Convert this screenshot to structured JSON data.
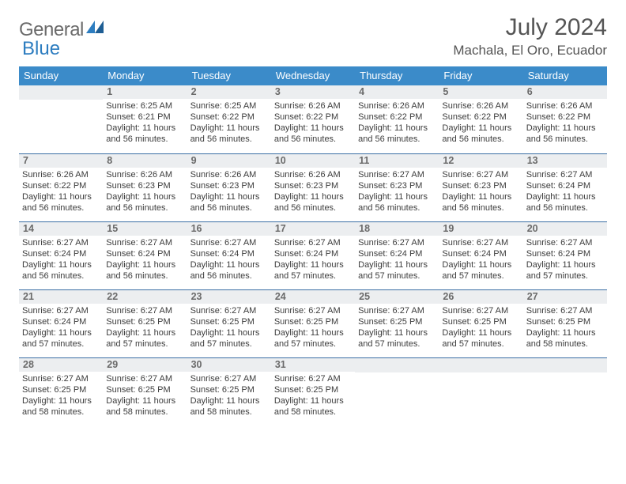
{
  "brand": {
    "text1": "General",
    "text2": "Blue",
    "text_color_gray": "#6b6b6b",
    "text_color_blue": "#2d7dc0",
    "shape_color": "#2d7dc0"
  },
  "title": {
    "month": "July 2024",
    "location": "Machala, El Oro, Ecuador",
    "month_fontsize": 30,
    "location_fontsize": 17,
    "color": "#555555"
  },
  "colors": {
    "header_bg": "#3b8bc9",
    "header_text": "#ffffff",
    "daynum_bg": "#eceef0",
    "daynum_text": "#6a6a6a",
    "body_text": "#3c3c3c",
    "row_border": "#3b6fa5",
    "page_bg": "#ffffff"
  },
  "headers": [
    "Sunday",
    "Monday",
    "Tuesday",
    "Wednesday",
    "Thursday",
    "Friday",
    "Saturday"
  ],
  "weeks": [
    [
      null,
      {
        "n": "1",
        "sunrise": "6:25 AM",
        "sunset": "6:21 PM",
        "daylight": "11 hours and 56 minutes."
      },
      {
        "n": "2",
        "sunrise": "6:25 AM",
        "sunset": "6:22 PM",
        "daylight": "11 hours and 56 minutes."
      },
      {
        "n": "3",
        "sunrise": "6:26 AM",
        "sunset": "6:22 PM",
        "daylight": "11 hours and 56 minutes."
      },
      {
        "n": "4",
        "sunrise": "6:26 AM",
        "sunset": "6:22 PM",
        "daylight": "11 hours and 56 minutes."
      },
      {
        "n": "5",
        "sunrise": "6:26 AM",
        "sunset": "6:22 PM",
        "daylight": "11 hours and 56 minutes."
      },
      {
        "n": "6",
        "sunrise": "6:26 AM",
        "sunset": "6:22 PM",
        "daylight": "11 hours and 56 minutes."
      }
    ],
    [
      {
        "n": "7",
        "sunrise": "6:26 AM",
        "sunset": "6:22 PM",
        "daylight": "11 hours and 56 minutes."
      },
      {
        "n": "8",
        "sunrise": "6:26 AM",
        "sunset": "6:23 PM",
        "daylight": "11 hours and 56 minutes."
      },
      {
        "n": "9",
        "sunrise": "6:26 AM",
        "sunset": "6:23 PM",
        "daylight": "11 hours and 56 minutes."
      },
      {
        "n": "10",
        "sunrise": "6:26 AM",
        "sunset": "6:23 PM",
        "daylight": "11 hours and 56 minutes."
      },
      {
        "n": "11",
        "sunrise": "6:27 AM",
        "sunset": "6:23 PM",
        "daylight": "11 hours and 56 minutes."
      },
      {
        "n": "12",
        "sunrise": "6:27 AM",
        "sunset": "6:23 PM",
        "daylight": "11 hours and 56 minutes."
      },
      {
        "n": "13",
        "sunrise": "6:27 AM",
        "sunset": "6:24 PM",
        "daylight": "11 hours and 56 minutes."
      }
    ],
    [
      {
        "n": "14",
        "sunrise": "6:27 AM",
        "sunset": "6:24 PM",
        "daylight": "11 hours and 56 minutes."
      },
      {
        "n": "15",
        "sunrise": "6:27 AM",
        "sunset": "6:24 PM",
        "daylight": "11 hours and 56 minutes."
      },
      {
        "n": "16",
        "sunrise": "6:27 AM",
        "sunset": "6:24 PM",
        "daylight": "11 hours and 56 minutes."
      },
      {
        "n": "17",
        "sunrise": "6:27 AM",
        "sunset": "6:24 PM",
        "daylight": "11 hours and 57 minutes."
      },
      {
        "n": "18",
        "sunrise": "6:27 AM",
        "sunset": "6:24 PM",
        "daylight": "11 hours and 57 minutes."
      },
      {
        "n": "19",
        "sunrise": "6:27 AM",
        "sunset": "6:24 PM",
        "daylight": "11 hours and 57 minutes."
      },
      {
        "n": "20",
        "sunrise": "6:27 AM",
        "sunset": "6:24 PM",
        "daylight": "11 hours and 57 minutes."
      }
    ],
    [
      {
        "n": "21",
        "sunrise": "6:27 AM",
        "sunset": "6:24 PM",
        "daylight": "11 hours and 57 minutes."
      },
      {
        "n": "22",
        "sunrise": "6:27 AM",
        "sunset": "6:25 PM",
        "daylight": "11 hours and 57 minutes."
      },
      {
        "n": "23",
        "sunrise": "6:27 AM",
        "sunset": "6:25 PM",
        "daylight": "11 hours and 57 minutes."
      },
      {
        "n": "24",
        "sunrise": "6:27 AM",
        "sunset": "6:25 PM",
        "daylight": "11 hours and 57 minutes."
      },
      {
        "n": "25",
        "sunrise": "6:27 AM",
        "sunset": "6:25 PM",
        "daylight": "11 hours and 57 minutes."
      },
      {
        "n": "26",
        "sunrise": "6:27 AM",
        "sunset": "6:25 PM",
        "daylight": "11 hours and 57 minutes."
      },
      {
        "n": "27",
        "sunrise": "6:27 AM",
        "sunset": "6:25 PM",
        "daylight": "11 hours and 58 minutes."
      }
    ],
    [
      {
        "n": "28",
        "sunrise": "6:27 AM",
        "sunset": "6:25 PM",
        "daylight": "11 hours and 58 minutes."
      },
      {
        "n": "29",
        "sunrise": "6:27 AM",
        "sunset": "6:25 PM",
        "daylight": "11 hours and 58 minutes."
      },
      {
        "n": "30",
        "sunrise": "6:27 AM",
        "sunset": "6:25 PM",
        "daylight": "11 hours and 58 minutes."
      },
      {
        "n": "31",
        "sunrise": "6:27 AM",
        "sunset": "6:25 PM",
        "daylight": "11 hours and 58 minutes."
      },
      null,
      null,
      null
    ]
  ],
  "labels": {
    "sunrise": "Sunrise:",
    "sunset": "Sunset:",
    "daylight": "Daylight:"
  }
}
